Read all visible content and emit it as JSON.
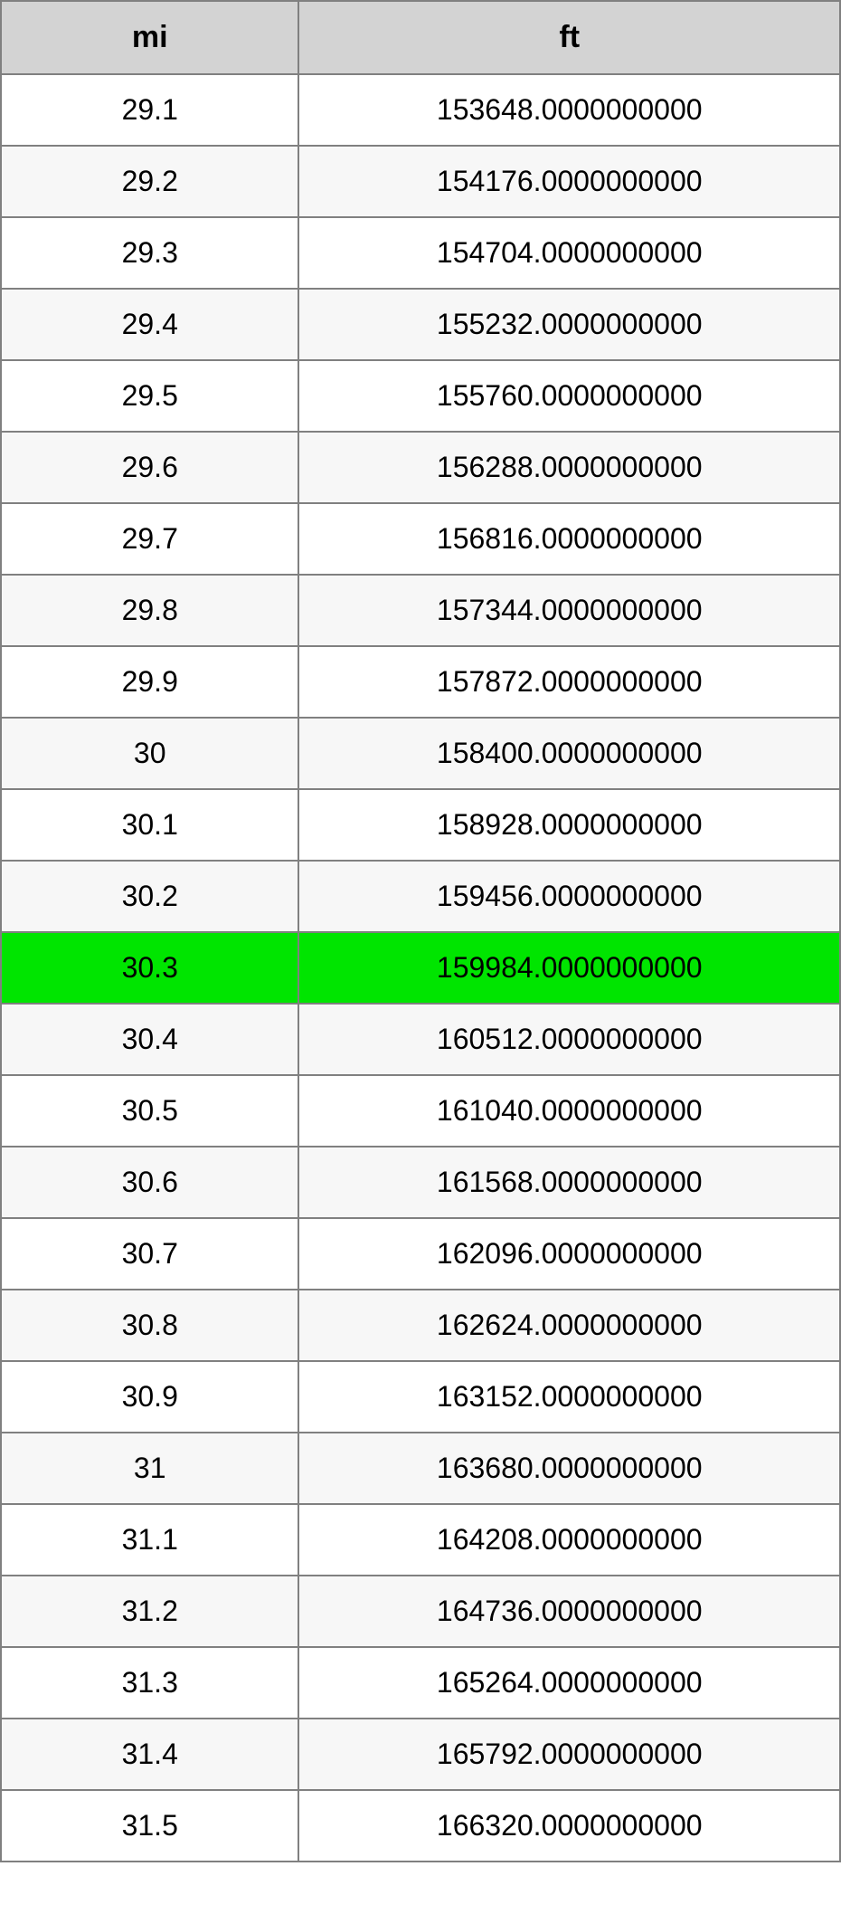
{
  "table": {
    "type": "table",
    "header_bg": "#d3d3d3",
    "border_color": "#808080",
    "row_odd_bg": "#ffffff",
    "row_even_bg": "#f7f7f7",
    "highlight_bg": "#00e500",
    "text_color": "#000000",
    "header_fontsize": 34,
    "cell_fontsize": 32,
    "columns": [
      {
        "label": "mi",
        "width_pct": 35.5,
        "align": "center"
      },
      {
        "label": "ft",
        "width_pct": 64.5,
        "align": "center"
      }
    ],
    "highlight_index": 12,
    "rows": [
      {
        "mi": "29.1",
        "ft": "153648.0000000000"
      },
      {
        "mi": "29.2",
        "ft": "154176.0000000000"
      },
      {
        "mi": "29.3",
        "ft": "154704.0000000000"
      },
      {
        "mi": "29.4",
        "ft": "155232.0000000000"
      },
      {
        "mi": "29.5",
        "ft": "155760.0000000000"
      },
      {
        "mi": "29.6",
        "ft": "156288.0000000000"
      },
      {
        "mi": "29.7",
        "ft": "156816.0000000000"
      },
      {
        "mi": "29.8",
        "ft": "157344.0000000000"
      },
      {
        "mi": "29.9",
        "ft": "157872.0000000000"
      },
      {
        "mi": "30",
        "ft": "158400.0000000000"
      },
      {
        "mi": "30.1",
        "ft": "158928.0000000000"
      },
      {
        "mi": "30.2",
        "ft": "159456.0000000000"
      },
      {
        "mi": "30.3",
        "ft": "159984.0000000000"
      },
      {
        "mi": "30.4",
        "ft": "160512.0000000000"
      },
      {
        "mi": "30.5",
        "ft": "161040.0000000000"
      },
      {
        "mi": "30.6",
        "ft": "161568.0000000000"
      },
      {
        "mi": "30.7",
        "ft": "162096.0000000000"
      },
      {
        "mi": "30.8",
        "ft": "162624.0000000000"
      },
      {
        "mi": "30.9",
        "ft": "163152.0000000000"
      },
      {
        "mi": "31",
        "ft": "163680.0000000000"
      },
      {
        "mi": "31.1",
        "ft": "164208.0000000000"
      },
      {
        "mi": "31.2",
        "ft": "164736.0000000000"
      },
      {
        "mi": "31.3",
        "ft": "165264.0000000000"
      },
      {
        "mi": "31.4",
        "ft": "165792.0000000000"
      },
      {
        "mi": "31.5",
        "ft": "166320.0000000000"
      }
    ]
  }
}
